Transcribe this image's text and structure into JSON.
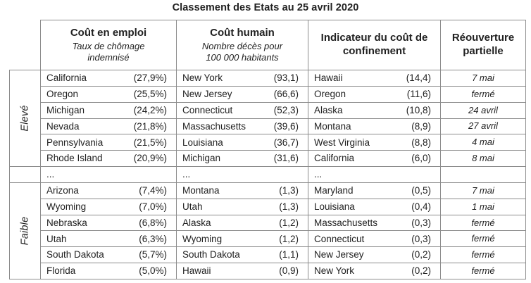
{
  "page_title": "Classement des Etats au 25 avril 2020",
  "colors": {
    "background": "#ffffff",
    "text": "#212121",
    "border": "#8c8c8c"
  },
  "chart_data": {
    "type": "table",
    "title": "Classement des Etats au 25 avril 2020",
    "columns": [
      {
        "title": "Coût en emploi",
        "subtitle": "Taux de chômage indemnisé"
      },
      {
        "title": "Coût humain",
        "subtitle": "Nombre décès pour 100 000 habitants"
      },
      {
        "title": "Indicateur du coût de confinement",
        "subtitle": ""
      },
      {
        "title": "Réouverture partielle",
        "subtitle": ""
      }
    ],
    "groups": [
      {
        "label": "Elevé",
        "rows": [
          [
            "California",
            "(27,9%)",
            "New York",
            "(93,1)",
            "Hawaii",
            "(14,4)",
            "7 mai"
          ],
          [
            "Oregon",
            "(25,5%)",
            "New Jersey",
            "(66,6)",
            "Oregon",
            "(11,6)",
            "fermé"
          ],
          [
            "Michigan",
            "(24,2%)",
            "Connecticut",
            "(52,3)",
            "Alaska",
            "(10,8)",
            "24 avril"
          ],
          [
            "Nevada",
            "(21,8%)",
            "Massachusetts",
            "(39,6)",
            "Montana",
            "(8,9)",
            "27 avril"
          ],
          [
            "Pennsylvania",
            "(21,5%)",
            "Louisiana",
            "(36,7)",
            "West Virginia",
            "(8,8)",
            "4 mai"
          ],
          [
            "Rhode Island",
            "(20,9%)",
            "Michigan",
            "(31,6)",
            "California",
            "(6,0)",
            "8 mai"
          ]
        ]
      },
      {
        "label": "",
        "rows": [
          [
            "...",
            "",
            "...",
            "",
            "...",
            "",
            ""
          ]
        ]
      },
      {
        "label": "Faible",
        "rows": [
          [
            "Arizona",
            "(7,4%)",
            "Montana",
            "(1,3)",
            "Maryland",
            "(0,5)",
            "7 mai"
          ],
          [
            "Wyoming",
            "(7,0%)",
            "Utah",
            "(1,3)",
            "Louisiana",
            "(0,4)",
            "1 mai"
          ],
          [
            "Nebraska",
            "(6,8%)",
            "Alaska",
            "(1,2)",
            "Massachusetts",
            "(0,3)",
            "fermé"
          ],
          [
            "Utah",
            "(6,3%)",
            "Wyoming",
            "(1,2)",
            "Connecticut",
            "(0,3)",
            "fermé"
          ],
          [
            "South Dakota",
            "(5,7%)",
            "South Dakota",
            "(1,1)",
            "New Jersey",
            "(0,2)",
            "fermé"
          ],
          [
            "Florida",
            "(5,0%)",
            "Hawaii",
            "(0,9)",
            "New York",
            "(0,2)",
            "fermé"
          ]
        ]
      }
    ]
  }
}
